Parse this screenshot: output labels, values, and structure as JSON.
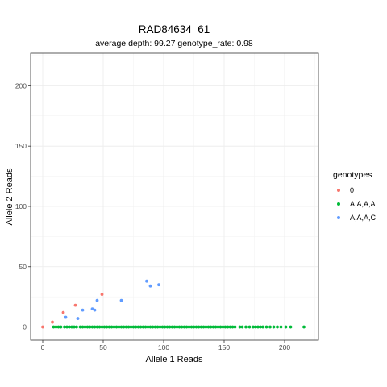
{
  "chart_data": {
    "type": "scatter",
    "title": "RAD84634_61",
    "subtitle": "average depth:  99.27  genotype_rate:  0.98",
    "xlabel": "Allele 1 Reads",
    "ylabel": "Allele 2 Reads",
    "xlim": [
      -10,
      228
    ],
    "ylim": [
      -11,
      227
    ],
    "x_ticks": [
      0,
      50,
      100,
      150,
      200
    ],
    "y_ticks": [
      0,
      50,
      100,
      150,
      200
    ],
    "grid": true,
    "legend": {
      "title": "genotypes",
      "position": "right"
    },
    "series": [
      {
        "name": "0",
        "color": "#F8766D",
        "points": [
          [
            0,
            0
          ],
          [
            8,
            4
          ],
          [
            17,
            12
          ],
          [
            27,
            18
          ],
          [
            49,
            27
          ]
        ]
      },
      {
        "name": "A,A,A,A",
        "color": "#00BA38",
        "points": [
          [
            9,
            0
          ],
          [
            11,
            0
          ],
          [
            13,
            0
          ],
          [
            15,
            0
          ],
          [
            18,
            0
          ],
          [
            20,
            0
          ],
          [
            22,
            0
          ],
          [
            24,
            0
          ],
          [
            26,
            0
          ],
          [
            28,
            0
          ],
          [
            31,
            0
          ],
          [
            33,
            0
          ],
          [
            35,
            0
          ],
          [
            37,
            0
          ],
          [
            39,
            0
          ],
          [
            41,
            0
          ],
          [
            43,
            0
          ],
          [
            45,
            0
          ],
          [
            47,
            0
          ],
          [
            49,
            0
          ],
          [
            51,
            0
          ],
          [
            53,
            0
          ],
          [
            55,
            0
          ],
          [
            57,
            0
          ],
          [
            59,
            0
          ],
          [
            61,
            0
          ],
          [
            63,
            0
          ],
          [
            65,
            0
          ],
          [
            67,
            0
          ],
          [
            69,
            0
          ],
          [
            71,
            0
          ],
          [
            73,
            0
          ],
          [
            75,
            0
          ],
          [
            77,
            0
          ],
          [
            79,
            0
          ],
          [
            81,
            0
          ],
          [
            83,
            0
          ],
          [
            85,
            0
          ],
          [
            87,
            0
          ],
          [
            89,
            0
          ],
          [
            91,
            0
          ],
          [
            93,
            0
          ],
          [
            95,
            0
          ],
          [
            97,
            0
          ],
          [
            99,
            0
          ],
          [
            101,
            0
          ],
          [
            103,
            0
          ],
          [
            105,
            0
          ],
          [
            107,
            0
          ],
          [
            109,
            0
          ],
          [
            111,
            0
          ],
          [
            113,
            0
          ],
          [
            115,
            0
          ],
          [
            117,
            0
          ],
          [
            119,
            0
          ],
          [
            121,
            0
          ],
          [
            123,
            0
          ],
          [
            125,
            0
          ],
          [
            127,
            0
          ],
          [
            129,
            0
          ],
          [
            131,
            0
          ],
          [
            133,
            0
          ],
          [
            135,
            0
          ],
          [
            137,
            0
          ],
          [
            139,
            0
          ],
          [
            141,
            0
          ],
          [
            143,
            0
          ],
          [
            145,
            0
          ],
          [
            147,
            0
          ],
          [
            149,
            0
          ],
          [
            151,
            0
          ],
          [
            153,
            0
          ],
          [
            155,
            0
          ],
          [
            157,
            0
          ],
          [
            159,
            0
          ],
          [
            163,
            0
          ],
          [
            165,
            0
          ],
          [
            168,
            0
          ],
          [
            171,
            0
          ],
          [
            174,
            0
          ],
          [
            176,
            0
          ],
          [
            178,
            0
          ],
          [
            180,
            0
          ],
          [
            182,
            0
          ],
          [
            185,
            0
          ],
          [
            188,
            0
          ],
          [
            191,
            0
          ],
          [
            194,
            0
          ],
          [
            197,
            0
          ],
          [
            201,
            0
          ],
          [
            205,
            0
          ],
          [
            216,
            0
          ]
        ]
      },
      {
        "name": "A,A,A,C",
        "color": "#619CFF",
        "points": [
          [
            19,
            8
          ],
          [
            29,
            7
          ],
          [
            33,
            14
          ],
          [
            41,
            15
          ],
          [
            43,
            14
          ],
          [
            45,
            22
          ],
          [
            65,
            22
          ],
          [
            86,
            38
          ],
          [
            89,
            34
          ],
          [
            96,
            35
          ]
        ]
      }
    ]
  }
}
